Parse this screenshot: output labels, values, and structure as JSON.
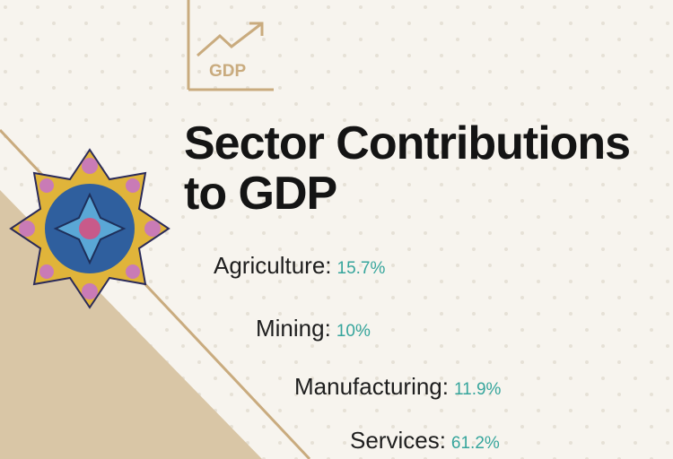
{
  "icon": {
    "label": "GDP"
  },
  "header": {
    "title": "Sector Contributions to GDP"
  },
  "items": [
    {
      "label": "Agriculture:",
      "value": "15.7%"
    },
    {
      "label": "Mining:",
      "value": "10%"
    },
    {
      "label": "Manufacturing:",
      "value": "11.9%"
    },
    {
      "label": "Services:",
      "value": "61.2%"
    }
  ]
}
